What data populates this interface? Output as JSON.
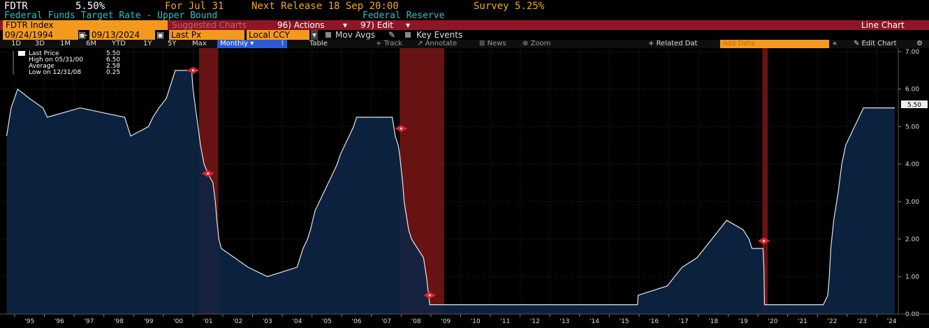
{
  "header": {
    "ticker": "FDTR",
    "last_value": "5.50%",
    "for_label": "For Jul 31",
    "next_release": "Next Release 18 Sep 20:00",
    "survey": "Survey 5.25%",
    "description": "Federal Funds Target Rate - Upper Bound",
    "source": "Federal Reserve"
  },
  "toolbar": {
    "security": "FDTR Index",
    "suggested": "Suggested Charts",
    "actions": "96) Actions",
    "edit": "97) Edit",
    "chart_type": "Line Chart"
  },
  "controls": {
    "start_date": "09/24/1994",
    "end_date": "09/13/2024",
    "field": "Last Px",
    "currency": "Local CCY",
    "mov_avgs": "Mov Avgs",
    "key_events": "Key Events"
  },
  "range_bar": {
    "ranges": [
      "1D",
      "3D",
      "1M",
      "6M",
      "YTD",
      "1Y",
      "5Y",
      "Max"
    ],
    "frequency": "Monthly",
    "table": "Table",
    "related": "Related Dat",
    "add_data": "Add Data",
    "edit_chart": "Edit Chart",
    "track": "Track",
    "annotate": "Annotate",
    "news": "News",
    "zoom": "Zoom"
  },
  "legend": {
    "rows": [
      {
        "label": "Last Price",
        "value": "5.50"
      },
      {
        "label": "High on 05/31/00",
        "value": "6.50"
      },
      {
        "label": "Average",
        "value": "2.58"
      },
      {
        "label": "Low on 12/31/08",
        "value": "0.25"
      }
    ]
  },
  "colors": {
    "fill": "#0d2545",
    "line": "#e6e6e6",
    "recession": "#8a1a1a",
    "toolbar_red": "#8e1626",
    "accent_orange": "#f39a1e",
    "text_cyan": "#29c0c0",
    "text_amber": "#f5a623"
  },
  "chart_data": {
    "type": "area",
    "title": "Federal Funds Target Rate - Upper Bound",
    "xlabel": "",
    "ylabel": "",
    "ylim": [
      0,
      7
    ],
    "yticks": [
      0,
      1,
      2,
      3,
      4,
      5,
      6,
      7
    ],
    "ytick_labels": [
      "0.00",
      "1.00",
      "2.00",
      "3.00",
      "4.00",
      "5.00",
      "6.00",
      "7.00"
    ],
    "x_categories": [
      "'95",
      "'96",
      "'97",
      "'98",
      "'99",
      "'00",
      "'01",
      "'02",
      "'03",
      "'04",
      "'05",
      "'06",
      "'07",
      "'08",
      "'09",
      "'10",
      "'11",
      "'12",
      "'13",
      "'14",
      "'15",
      "'16",
      "'17",
      "'18",
      "'19",
      "'20",
      "'21",
      "'22",
      "'23",
      "'24"
    ],
    "last_price_label": "5.50",
    "series": [
      {
        "name": "FDTR Index",
        "points": [
          [
            1994.73,
            4.75
          ],
          [
            1994.88,
            5.5
          ],
          [
            1995.1,
            6.0
          ],
          [
            1995.5,
            5.75
          ],
          [
            1995.95,
            5.5
          ],
          [
            1996.1,
            5.25
          ],
          [
            1997.2,
            5.5
          ],
          [
            1998.7,
            5.25
          ],
          [
            1998.8,
            5.0
          ],
          [
            1998.9,
            4.75
          ],
          [
            1999.5,
            5.0
          ],
          [
            1999.65,
            5.25
          ],
          [
            1999.85,
            5.5
          ],
          [
            2000.1,
            5.75
          ],
          [
            2000.2,
            6.0
          ],
          [
            2000.4,
            6.5
          ],
          [
            2000.95,
            6.5
          ],
          [
            2001.0,
            6.0
          ],
          [
            2001.08,
            5.5
          ],
          [
            2001.17,
            5.0
          ],
          [
            2001.25,
            4.5
          ],
          [
            2001.37,
            4.0
          ],
          [
            2001.5,
            3.75
          ],
          [
            2001.67,
            3.5
          ],
          [
            2001.75,
            3.0
          ],
          [
            2001.8,
            2.5
          ],
          [
            2001.87,
            2.0
          ],
          [
            2001.95,
            1.75
          ],
          [
            2002.85,
            1.25
          ],
          [
            2003.5,
            1.0
          ],
          [
            2004.5,
            1.25
          ],
          [
            2004.6,
            1.5
          ],
          [
            2004.7,
            1.75
          ],
          [
            2004.85,
            2.0
          ],
          [
            2004.95,
            2.25
          ],
          [
            2005.1,
            2.75
          ],
          [
            2005.25,
            3.0
          ],
          [
            2005.4,
            3.25
          ],
          [
            2005.55,
            3.5
          ],
          [
            2005.7,
            3.75
          ],
          [
            2005.85,
            4.0
          ],
          [
            2005.95,
            4.25
          ],
          [
            2006.1,
            4.5
          ],
          [
            2006.25,
            4.75
          ],
          [
            2006.4,
            5.0
          ],
          [
            2006.5,
            5.25
          ],
          [
            2007.7,
            5.25
          ],
          [
            2007.8,
            4.75
          ],
          [
            2007.9,
            4.5
          ],
          [
            2007.95,
            4.25
          ],
          [
            2008.05,
            3.5
          ],
          [
            2008.1,
            3.0
          ],
          [
            2008.25,
            2.25
          ],
          [
            2008.35,
            2.0
          ],
          [
            2008.75,
            1.5
          ],
          [
            2008.85,
            1.0
          ],
          [
            2008.96,
            0.25
          ],
          [
            2015.95,
            0.25
          ],
          [
            2015.97,
            0.5
          ],
          [
            2016.95,
            0.75
          ],
          [
            2017.2,
            1.0
          ],
          [
            2017.45,
            1.25
          ],
          [
            2017.95,
            1.5
          ],
          [
            2018.2,
            1.75
          ],
          [
            2018.45,
            2.0
          ],
          [
            2018.7,
            2.25
          ],
          [
            2018.95,
            2.5
          ],
          [
            2019.5,
            2.25
          ],
          [
            2019.7,
            2.0
          ],
          [
            2019.8,
            1.75
          ],
          [
            2020.17,
            1.75
          ],
          [
            2020.2,
            1.25
          ],
          [
            2020.22,
            0.25
          ],
          [
            2022.2,
            0.25
          ],
          [
            2022.35,
            0.5
          ],
          [
            2022.4,
            1.0
          ],
          [
            2022.45,
            1.75
          ],
          [
            2022.55,
            2.5
          ],
          [
            2022.7,
            3.25
          ],
          [
            2022.82,
            4.0
          ],
          [
            2022.95,
            4.5
          ],
          [
            2023.1,
            4.75
          ],
          [
            2023.25,
            5.0
          ],
          [
            2023.4,
            5.25
          ],
          [
            2023.55,
            5.5
          ],
          [
            2024.6,
            5.5
          ]
        ]
      }
    ],
    "recessions": [
      [
        2001.2,
        2001.85
      ],
      [
        2007.95,
        2009.45
      ],
      [
        2020.15,
        2020.33
      ]
    ],
    "event_markers": [
      {
        "x": 2001.0,
        "y": 6.5
      },
      {
        "x": 2001.5,
        "y": 3.75
      },
      {
        "x": 2008.0,
        "y": 4.95
      },
      {
        "x": 2008.96,
        "y": 0.5
      },
      {
        "x": 2020.2,
        "y": 1.95
      }
    ]
  }
}
